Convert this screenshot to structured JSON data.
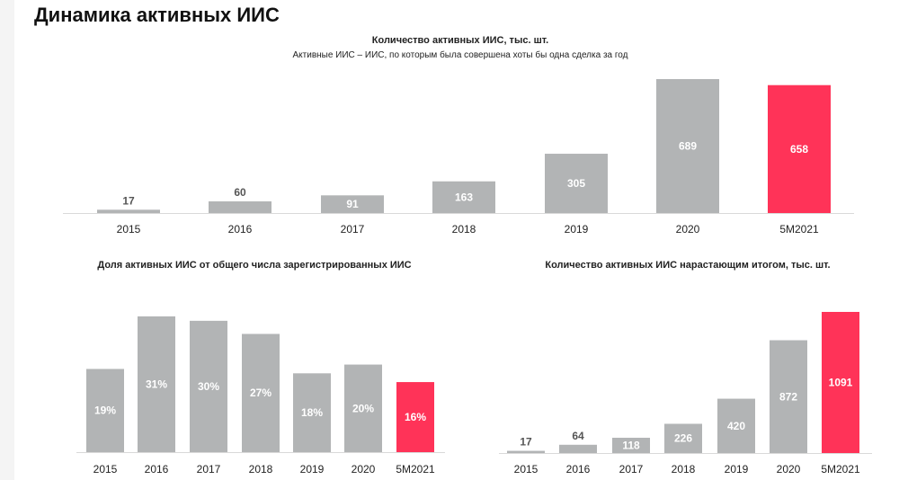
{
  "page_title": "Динамика активных ИИС",
  "colors": {
    "bar": "#b2b4b5",
    "highlight": "#ff3358",
    "text": "#222222",
    "axis": "#d9d9d9"
  },
  "chart_data": [
    {
      "type": "bar",
      "title": "Количество активных ИИС, тыс. шт.",
      "subtitle": "Активные ИИС – ИИС, по которым была совершена хоты бы одна сделка за год",
      "categories": [
        "2015",
        "2016",
        "2017",
        "2018",
        "2019",
        "2020",
        "5M2021"
      ],
      "values": [
        17,
        60,
        91,
        163,
        305,
        689,
        658
      ],
      "labels": [
        "17",
        "60",
        "91",
        "163",
        "305",
        "689",
        "658"
      ],
      "highlight_index": 6,
      "ylim": [
        0,
        689
      ]
    },
    {
      "type": "bar",
      "title": "Доля активных ИИС от общего числа зарегистрированных ИИС",
      "categories": [
        "2015",
        "2016",
        "2017",
        "2018",
        "2019",
        "2020",
        "5M2021"
      ],
      "values": [
        19,
        31,
        30,
        27,
        18,
        20,
        16
      ],
      "labels": [
        "19%",
        "31%",
        "30%",
        "27%",
        "18%",
        "20%",
        "16%"
      ],
      "highlight_index": 6,
      "ylim": [
        0,
        31
      ]
    },
    {
      "type": "bar",
      "title": "Количество активных ИИС нарастающим итогом, тыс. шт.",
      "categories": [
        "2015",
        "2016",
        "2017",
        "2018",
        "2019",
        "2020",
        "5M2021"
      ],
      "values": [
        17,
        64,
        118,
        226,
        420,
        872,
        1091
      ],
      "labels": [
        "17",
        "64",
        "118",
        "226",
        "420",
        "872",
        "1091"
      ],
      "highlight_index": 6,
      "ylim": [
        0,
        1091
      ]
    }
  ]
}
